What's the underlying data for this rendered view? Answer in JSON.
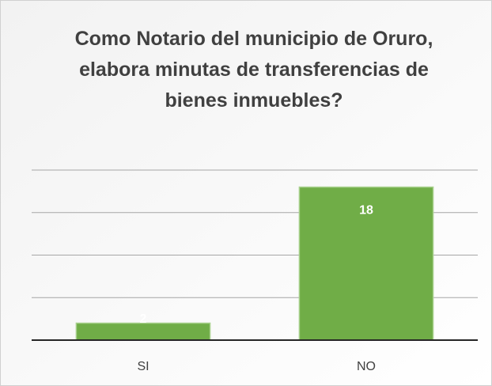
{
  "chart_data": {
    "type": "bar",
    "title": "Como Notario del municipio de Oruro, elabora minutas de transferencias de bienes inmuebles?",
    "categories": [
      "SI",
      "NO"
    ],
    "values": [
      2,
      18
    ],
    "color": "#70ad47",
    "ylim": [
      0,
      20
    ],
    "yticks": [
      0,
      5,
      10,
      15,
      20
    ],
    "grid": true
  }
}
